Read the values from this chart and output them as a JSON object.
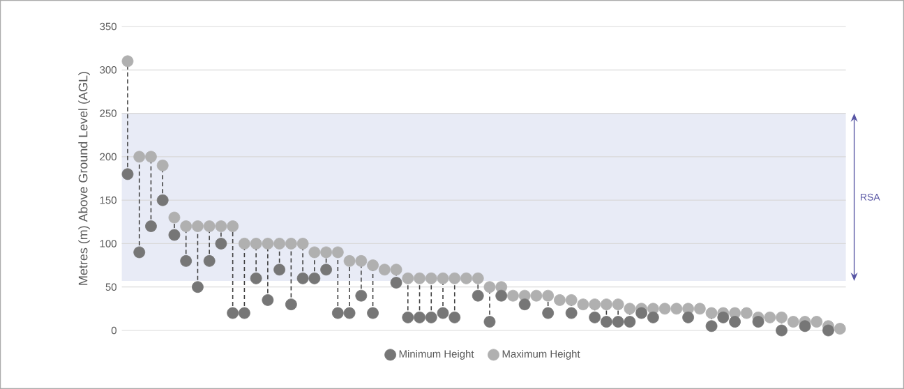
{
  "chart_data": {
    "type": "scatter",
    "ylabel": "Metres (m) Above Ground Level (AGL)",
    "categories": [
      null,
      null,
      null,
      null,
      null,
      null,
      null,
      null,
      null,
      null,
      null,
      null,
      null,
      null,
      null,
      null,
      null,
      null,
      null,
      null,
      null,
      null,
      null,
      null,
      null,
      null,
      null,
      null,
      null,
      null,
      null,
      null,
      null,
      null,
      null,
      null,
      null,
      null,
      null,
      null,
      null,
      null,
      null,
      null,
      null,
      null,
      null,
      null,
      null,
      null,
      null,
      null,
      null,
      null,
      null,
      null,
      null,
      null,
      null,
      null,
      null,
      null
    ],
    "series": [
      {
        "name": "Minimum Height",
        "color": "#767676",
        "values": [
          180,
          90,
          120,
          150,
          110,
          80,
          50,
          80,
          100,
          20,
          20,
          60,
          35,
          70,
          30,
          60,
          60,
          70,
          20,
          20,
          40,
          20,
          null,
          55,
          15,
          15,
          15,
          20,
          15,
          null,
          40,
          10,
          40,
          null,
          30,
          null,
          20,
          null,
          20,
          null,
          15,
          10,
          10,
          10,
          20,
          15,
          null,
          null,
          15,
          null,
          5,
          15,
          10,
          null,
          10,
          null,
          0,
          null,
          5,
          null,
          0,
          null
        ]
      },
      {
        "name": "Maximum Height",
        "color": "#b0b0b0",
        "values": [
          310,
          200,
          200,
          190,
          130,
          120,
          120,
          120,
          120,
          120,
          100,
          100,
          100,
          100,
          100,
          100,
          90,
          90,
          90,
          80,
          80,
          75,
          70,
          70,
          60,
          60,
          60,
          60,
          60,
          60,
          60,
          50,
          50,
          40,
          40,
          40,
          40,
          35,
          35,
          30,
          30,
          30,
          30,
          25,
          25,
          25,
          25,
          25,
          25,
          25,
          20,
          20,
          20,
          20,
          15,
          15,
          15,
          10,
          10,
          10,
          5,
          2
        ]
      }
    ],
    "ylim": [
      0,
      350
    ],
    "yticks": [
      0,
      50,
      100,
      150,
      200,
      250,
      300,
      350
    ],
    "grid": "y",
    "legend": "bottom",
    "marker": "circle",
    "bands": [
      {
        "axis": "y",
        "from": 57,
        "to": 250,
        "label": "RSA",
        "color": "#e8ebf6"
      }
    ]
  }
}
